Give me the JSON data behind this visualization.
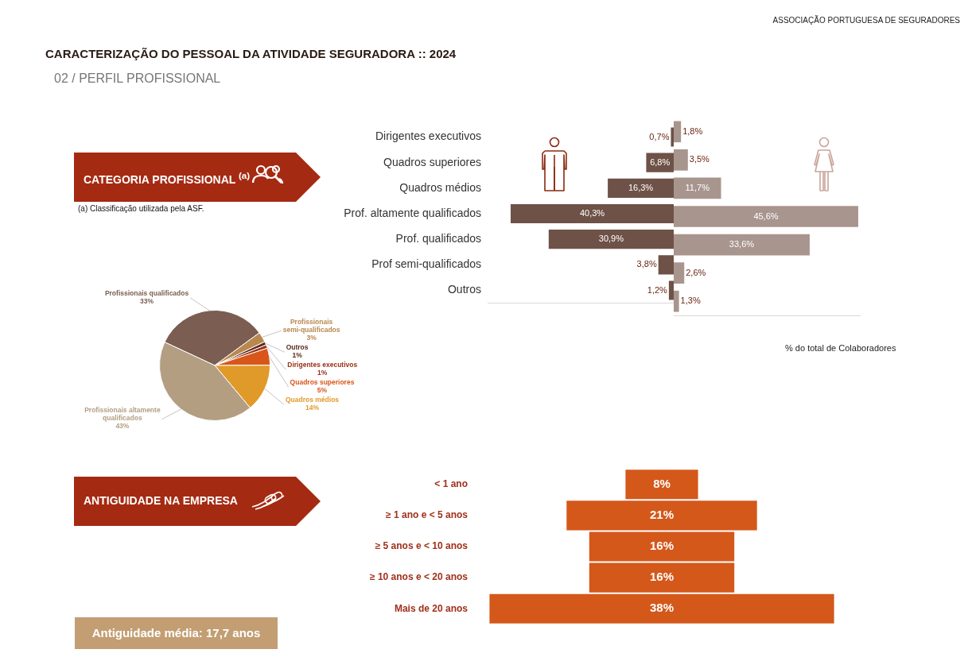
{
  "chart_data": [
    {
      "type": "bar",
      "orientation": "horizontal",
      "categories": [
        "Dirigentes executivos",
        "Quadros superiores",
        "Quadros médios",
        "Prof. altamente qualificados",
        "Prof. qualificados",
        "Prof semi-qualificados",
        "Outros"
      ],
      "series": [
        {
          "color": "#6e5247",
          "values": [
            0.7,
            6.8,
            16.3,
            40.3,
            30.9,
            3.8,
            1.2
          ],
          "value_labels": [
            "0,7%",
            "6,8%",
            "16,3%",
            "40,3%",
            "30,9%",
            "3,8%",
            "1,2%"
          ]
        }
      ],
      "xlim": [
        46,
        0
      ],
      "tick_labels": "y"
    },
    {
      "type": "bar",
      "orientation": "horizontal",
      "categories": [
        null,
        null,
        null,
        null,
        null,
        null,
        null
      ],
      "series": [
        {
          "color": "#a8958e",
          "values": [
            1.8,
            3.5,
            11.7,
            45.6,
            33.6,
            2.6,
            1.3
          ],
          "value_labels": [
            "1,8%",
            "3,5%",
            "11,7%",
            "45,6%",
            "33,6%",
            "2,6%",
            "1,3%"
          ]
        }
      ],
      "xlim": [
        0,
        46
      ],
      "tick_labels": false,
      "annotations": [
        "ASSOCIAÇÃO PORTUGUESA DE SEGURADORES",
        "%  do total de Colaboradores"
      ]
    },
    {
      "type": "pie",
      "title": "CATEGORIA PROFISSIONAL $^{(a)}$",
      "categories": [
        "Profissionais qualificados",
        "Profissionais semi-qualificados",
        "Outros",
        "Dirigentes executivos",
        "Quadros superiores",
        "Quadros médios",
        "Profissionais altamente qualificados"
      ],
      "values": [
        33,
        3,
        1,
        1,
        5,
        14,
        43
      ],
      "value_labels": [
        "33%",
        "3%",
        "1%",
        "1%",
        "5%",
        "14%",
        "43%"
      ],
      "colors": [
        "#7b5d51",
        "#b9884f",
        "#5a2c1c",
        "#9c2f16",
        "#d9561b",
        "#e09a2a",
        "#b39e82"
      ],
      "annotations": [
        "CARACTERIZAÇÃO DO PESSOAL DA ATIVIDADE SEGURADORA :: 2024",
        "02 / PERFIL PROFISSIONAL",
        "(a) Classificação utilizada pela ASF."
      ]
    },
    {
      "type": "other",
      "title": "ANTIGUIDADE NA EMPRESA",
      "categories": [
        "< 1 ano",
        "≥ 1 ano e < 5 anos",
        "≥ 5 anos e < 10 anos",
        "≥ 10 anos e < 20 anos",
        "Mais de 20 anos"
      ],
      "values": [
        8,
        21,
        16,
        16,
        38
      ],
      "value_labels": [
        "8%",
        "21%",
        "16%",
        "16%",
        "38%"
      ],
      "color": "#d4581a",
      "annotations": [
        "Antiguidade média: 17,7 anos"
      ]
    }
  ]
}
